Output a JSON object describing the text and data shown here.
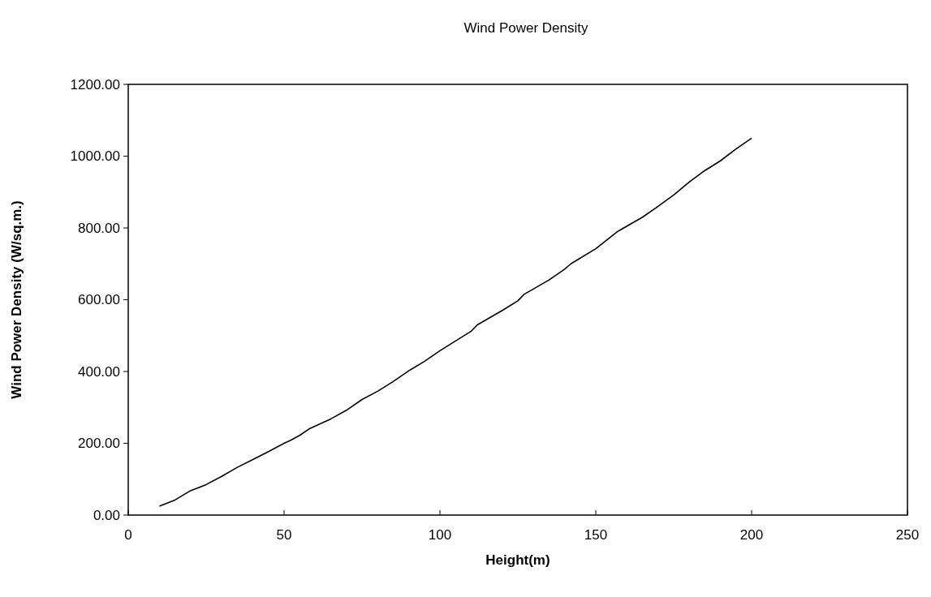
{
  "chart_data": {
    "type": "line",
    "title": "Wind Power Density",
    "xlabel": "Height(m)",
    "ylabel": "Wind Power Density (W/sq.m.)",
    "xlim": [
      0,
      250
    ],
    "xticks": [
      0,
      50,
      100,
      150,
      200,
      250
    ],
    "ylim": [
      0,
      1200
    ],
    "yticks": [
      {
        "value": 0,
        "label": "0.00"
      },
      {
        "value": 200,
        "label": "200.00"
      },
      {
        "value": 400,
        "label": "400.00"
      },
      {
        "value": 600,
        "label": "600.00"
      },
      {
        "value": 800,
        "label": "800.00"
      },
      {
        "value": 1000,
        "label": "1000.00"
      },
      {
        "value": 1200,
        "label": "1200.00"
      }
    ],
    "grid": false,
    "marker": "none",
    "line_style": "solid",
    "series": [
      {
        "color": "#000000",
        "x": [
          10,
          15,
          20,
          25,
          30,
          35,
          40,
          45,
          50,
          52,
          55,
          58,
          65,
          70,
          75,
          80,
          85,
          90,
          95,
          100,
          105,
          110,
          112,
          120,
          125,
          127,
          135,
          140,
          142,
          150,
          157,
          165,
          170,
          175,
          180,
          185,
          190,
          195,
          200
        ],
        "values": [
          25,
          42,
          68,
          85,
          108,
          133,
          155,
          177,
          200,
          208,
          222,
          240,
          268,
          292,
          322,
          345,
          372,
          402,
          428,
          458,
          485,
          512,
          530,
          570,
          597,
          615,
          655,
          685,
          700,
          742,
          790,
          830,
          860,
          892,
          928,
          960,
          987,
          1020,
          1050
        ]
      }
    ]
  }
}
